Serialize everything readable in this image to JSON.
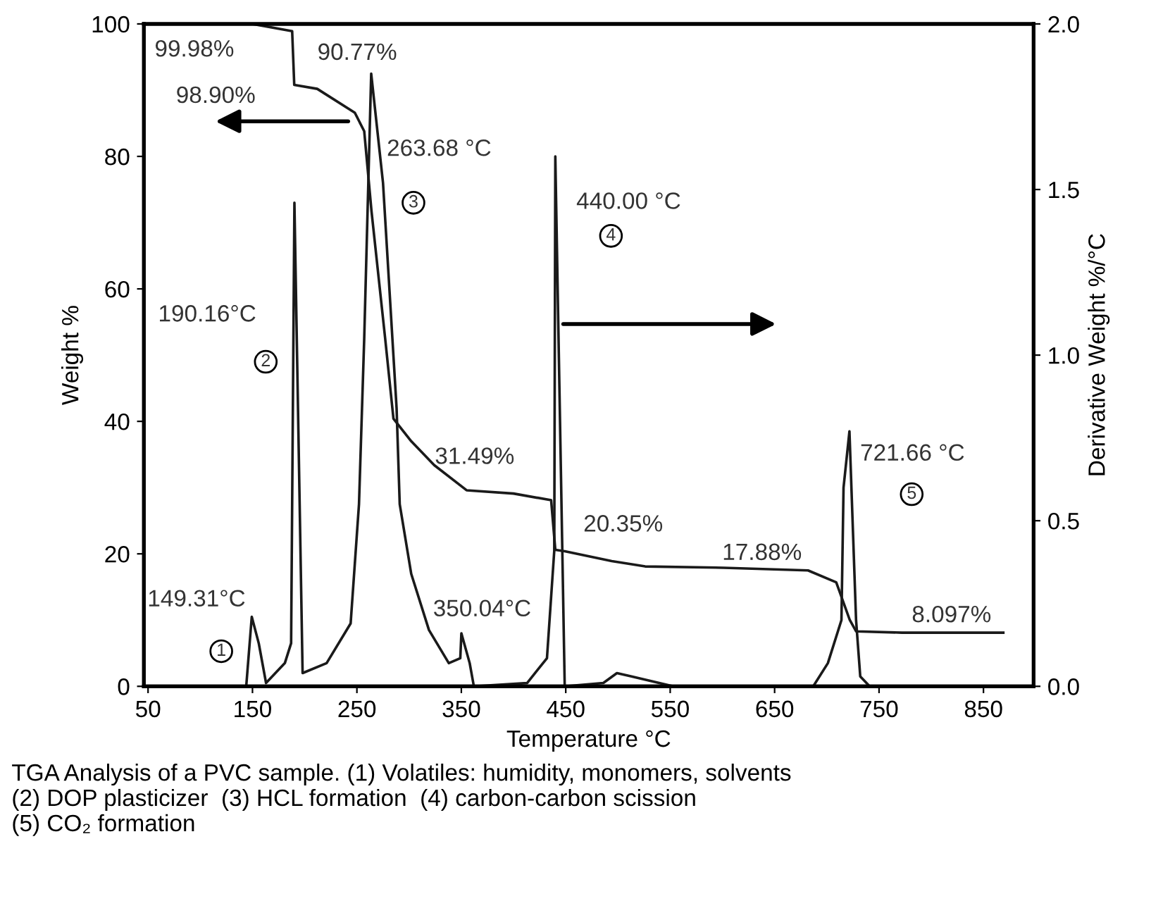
{
  "chart_data": {
    "type": "line",
    "xlabel": "Temperature °C",
    "ylabel": "Weight %",
    "y2label": "Derivative Weight %/°C",
    "xlim": [
      46,
      898
    ],
    "xticks": [
      50,
      150,
      250,
      350,
      450,
      550,
      650,
      750,
      850
    ],
    "ylim": [
      0,
      100
    ],
    "yticks": [
      0,
      20,
      40,
      60,
      80,
      100
    ],
    "y2lim": [
      0,
      2.0
    ],
    "y2ticks": [
      {
        "value": 0,
        "label": "0.0"
      },
      {
        "value": 0.5,
        "label": "0.5"
      },
      {
        "value": 1.0,
        "label": "1.0"
      },
      {
        "value": 1.5,
        "label": "1.5"
      },
      {
        "value": 2.0,
        "label": "2.0"
      }
    ],
    "grid": false,
    "legend": false,
    "marker": "none",
    "line_style": "solid",
    "series": [
      {
        "color": "#1a1a1a",
        "x": [
          150,
          188,
          190,
          212,
          248,
          257,
          264,
          277,
          285,
          302,
          324,
          355,
          400,
          436,
          440,
          449,
          494,
          526,
          601,
          682,
          709,
          722,
          728,
          772,
          869
        ],
        "values": [
          100,
          98.9,
          90.8,
          90.2,
          86.6,
          83.8,
          71.7,
          52.6,
          40.4,
          37,
          33.4,
          29.6,
          29.1,
          28.1,
          20.6,
          20.4,
          18.9,
          18.1,
          17.9,
          17.5,
          15.7,
          10,
          8.3,
          8.1,
          8.1
        ]
      },
      {
        "color": "#1a1a1a",
        "axis": "y2",
        "x": [
          50,
          144,
          149.31,
          156,
          163,
          181,
          187,
          190.16,
          198,
          221,
          244,
          252,
          257,
          263.68,
          275,
          288,
          291,
          302,
          319,
          338,
          349,
          350.04,
          358,
          362,
          413,
          432,
          439,
          440,
          449,
          486,
          499,
          513,
          553,
          687,
          701,
          714,
          716,
          721.66,
          728,
          732,
          741,
          760
        ],
        "values": [
          0,
          0,
          0.21,
          0.13,
          0.01,
          0.07,
          0.13,
          1.46,
          0.04,
          0.07,
          0.19,
          0.55,
          1.05,
          1.85,
          1.52,
          0.84,
          0.55,
          0.34,
          0.17,
          0.07,
          0.085,
          0.16,
          0.07,
          0,
          0.01,
          0.085,
          0.41,
          1.6,
          0,
          0.01,
          0.04,
          0.03,
          0,
          0,
          0.07,
          0.2,
          0.6,
          0.77,
          0.2,
          0.03,
          0,
          0
        ]
      }
    ],
    "annotations": [
      "99.98%",
      "98.90%",
      "90.77%",
      "263.68 °C",
      "440.00 °C",
      "190.16°C",
      "149.31°C",
      "31.49%",
      "350.04°C",
      "20.35%",
      "17.88%",
      "721.66 °C",
      "8.097%",
      "1",
      "2",
      "3",
      "4",
      "5",
      "TGA Analysis of a PVC sample. (1) Volatiles: humidity, monomers, solvents\n(2) DOP plasticizer  (3) HCL formation  (4) carbon-carbon scission\n(5) CO₂ formation"
    ]
  }
}
